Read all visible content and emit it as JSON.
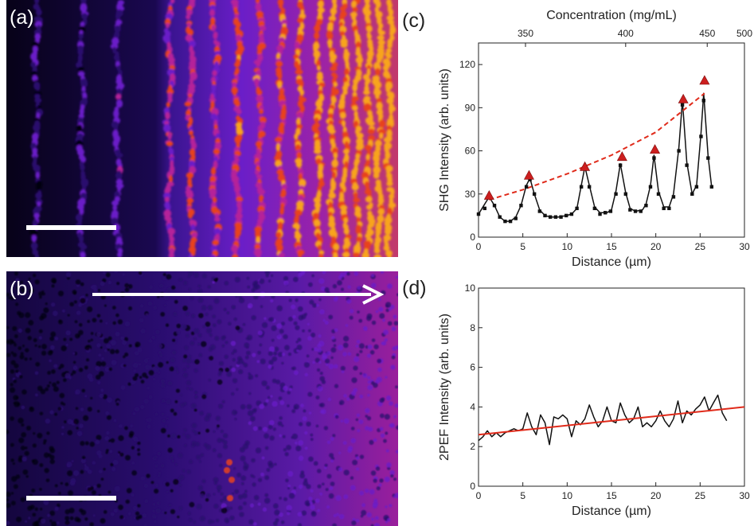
{
  "panels": {
    "a": {
      "letter": "(a)"
    },
    "b": {
      "letter": "(b)"
    },
    "c": {
      "letter": "(c)"
    },
    "d": {
      "letter": "(d)"
    }
  },
  "colors": {
    "shg_line": "#111111",
    "shg_markers": "#111111",
    "shg_peaks": "#cc1f1f",
    "shg_fit": "#e02a1a",
    "pef_line": "#111111",
    "pef_fit": "#e02a1a",
    "colormap": [
      "#05010e",
      "#2a0a6e",
      "#6a1ec8",
      "#b5229a",
      "#e8421f",
      "#f8a41a",
      "#fff5a0"
    ]
  },
  "chart_data": [
    {
      "type": "line",
      "panel": "c",
      "xlabel": "Distance (µm)",
      "ylabel": "SHG Intensity (arb. units)",
      "xlim": [
        0,
        30
      ],
      "ylim": [
        0,
        135
      ],
      "xticks": [
        0,
        5,
        10,
        15,
        20,
        25,
        30
      ],
      "yticks": [
        0,
        30,
        60,
        90,
        120
      ],
      "top_axis": {
        "label": "Concentration (mg/mL)",
        "ticks": [
          {
            "label": "350",
            "x": 5.3
          },
          {
            "label": "400",
            "x": 16.6
          },
          {
            "label": "450",
            "x": 25.8
          },
          {
            "label": "500",
            "x": 30
          }
        ]
      },
      "series": [
        {
          "kind": "markers",
          "points": [
            [
              0,
              16
            ],
            [
              0.7,
              20
            ],
            [
              1.2,
              28
            ],
            [
              1.8,
              22
            ],
            [
              2.4,
              14
            ],
            [
              3,
              11
            ],
            [
              3.6,
              11
            ],
            [
              4.2,
              13
            ],
            [
              4.8,
              22
            ],
            [
              5.4,
              35
            ],
            [
              5.8,
              40
            ],
            [
              6.3,
              30
            ],
            [
              6.9,
              18
            ],
            [
              7.5,
              15
            ],
            [
              8.1,
              14
            ],
            [
              8.7,
              14
            ],
            [
              9.3,
              14
            ],
            [
              9.9,
              15
            ],
            [
              10.5,
              16
            ],
            [
              11.1,
              20
            ],
            [
              11.6,
              35
            ],
            [
              12,
              48
            ],
            [
              12.5,
              35
            ],
            [
              13.1,
              20
            ],
            [
              13.7,
              16
            ],
            [
              14.3,
              17
            ],
            [
              14.9,
              18
            ],
            [
              15.5,
              30
            ],
            [
              16,
              50
            ],
            [
              16.6,
              30
            ],
            [
              17.1,
              19
            ],
            [
              17.7,
              18
            ],
            [
              18.3,
              18
            ],
            [
              18.9,
              22
            ],
            [
              19.4,
              35
            ],
            [
              19.8,
              55
            ],
            [
              20.3,
              30
            ],
            [
              20.9,
              20
            ],
            [
              21.5,
              20
            ],
            [
              22,
              28
            ],
            [
              22.6,
              60
            ],
            [
              23,
              92
            ],
            [
              23.5,
              50
            ],
            [
              24.1,
              30
            ],
            [
              24.6,
              35
            ],
            [
              25.1,
              70
            ],
            [
              25.4,
              95
            ],
            [
              25.9,
              55
            ],
            [
              26.3,
              35
            ]
          ]
        },
        {
          "kind": "peaks",
          "points": [
            [
              1.2,
              29
            ],
            [
              5.7,
              43
            ],
            [
              12,
              49
            ],
            [
              16.2,
              56
            ],
            [
              19.9,
              61
            ],
            [
              23.1,
              96
            ],
            [
              25.5,
              109
            ]
          ]
        },
        {
          "kind": "fit",
          "points": [
            [
              1.2,
              26
            ],
            [
              5,
              33
            ],
            [
              10,
              44
            ],
            [
              15,
              57
            ],
            [
              20,
              73
            ],
            [
              25.5,
              100
            ]
          ]
        },
        {
          "kind": "line",
          "points": [
            [
              0,
              16
            ],
            [
              0.6,
              22
            ],
            [
              1.2,
              28
            ],
            [
              1.8,
              22
            ],
            [
              2.4,
              14
            ],
            [
              3,
              11
            ],
            [
              3.6,
              11
            ],
            [
              4.2,
              14
            ],
            [
              4.8,
              22
            ],
            [
              5.4,
              36
            ],
            [
              5.8,
              41
            ],
            [
              6.3,
              30
            ],
            [
              6.9,
              19
            ],
            [
              7.5,
              15
            ],
            [
              8.1,
              14
            ],
            [
              9,
              14
            ],
            [
              9.9,
              15
            ],
            [
              10.5,
              16
            ],
            [
              11.1,
              20
            ],
            [
              11.6,
              36
            ],
            [
              12,
              49
            ],
            [
              12.5,
              36
            ],
            [
              13.1,
              21
            ],
            [
              13.7,
              17
            ],
            [
              14.5,
              17
            ],
            [
              15,
              19
            ],
            [
              15.5,
              32
            ],
            [
              16,
              51
            ],
            [
              16.6,
              31
            ],
            [
              17.1,
              20
            ],
            [
              17.7,
              18
            ],
            [
              18.5,
              19
            ],
            [
              18.9,
              23
            ],
            [
              19.4,
              36
            ],
            [
              19.8,
              57
            ],
            [
              20.3,
              32
            ],
            [
              20.9,
              21
            ],
            [
              21.5,
              21
            ],
            [
              22,
              30
            ],
            [
              22.6,
              62
            ],
            [
              23,
              95
            ],
            [
              23.5,
              52
            ],
            [
              24.1,
              30
            ],
            [
              24.6,
              36
            ],
            [
              25.1,
              72
            ],
            [
              25.4,
              100
            ],
            [
              25.9,
              56
            ],
            [
              26.3,
              35
            ]
          ]
        }
      ]
    },
    {
      "type": "line",
      "panel": "d",
      "xlabel": "Distance (µm)",
      "ylabel": "2PEF Intensity (arb. units)",
      "xlim": [
        0,
        30
      ],
      "ylim": [
        0,
        10
      ],
      "xticks": [
        0,
        5,
        10,
        15,
        20,
        25,
        30
      ],
      "yticks": [
        0,
        2,
        4,
        6,
        8,
        10
      ],
      "series": [
        {
          "kind": "line",
          "points": [
            [
              0,
              2.3
            ],
            [
              0.5,
              2.5
            ],
            [
              1,
              2.8
            ],
            [
              1.5,
              2.5
            ],
            [
              2,
              2.7
            ],
            [
              2.5,
              2.5
            ],
            [
              3,
              2.7
            ],
            [
              3.5,
              2.8
            ],
            [
              4,
              2.9
            ],
            [
              4.5,
              2.8
            ],
            [
              5,
              2.9
            ],
            [
              5.5,
              3.7
            ],
            [
              6,
              3.0
            ],
            [
              6.5,
              2.6
            ],
            [
              7,
              3.6
            ],
            [
              7.5,
              3.2
            ],
            [
              8,
              2.1
            ],
            [
              8.5,
              3.5
            ],
            [
              9,
              3.4
            ],
            [
              9.5,
              3.6
            ],
            [
              10,
              3.4
            ],
            [
              10.5,
              2.5
            ],
            [
              11,
              3.3
            ],
            [
              11.5,
              3.1
            ],
            [
              12,
              3.4
            ],
            [
              12.5,
              4.1
            ],
            [
              13,
              3.5
            ],
            [
              13.5,
              3.0
            ],
            [
              14,
              3.3
            ],
            [
              14.5,
              4.0
            ],
            [
              15,
              3.3
            ],
            [
              15.5,
              3.2
            ],
            [
              16,
              4.2
            ],
            [
              16.5,
              3.6
            ],
            [
              17,
              3.2
            ],
            [
              17.5,
              3.4
            ],
            [
              18,
              4.0
            ],
            [
              18.5,
              3.0
            ],
            [
              19,
              3.2
            ],
            [
              19.5,
              3.0
            ],
            [
              20,
              3.3
            ],
            [
              20.5,
              3.8
            ],
            [
              21,
              3.3
            ],
            [
              21.5,
              3.0
            ],
            [
              22,
              3.4
            ],
            [
              22.5,
              4.3
            ],
            [
              23,
              3.2
            ],
            [
              23.5,
              3.8
            ],
            [
              24,
              3.6
            ],
            [
              24.5,
              3.9
            ],
            [
              25,
              4.1
            ],
            [
              25.5,
              4.5
            ],
            [
              26,
              3.8
            ],
            [
              26.5,
              4.2
            ],
            [
              27,
              4.6
            ],
            [
              27.5,
              3.7
            ],
            [
              28,
              3.3
            ]
          ]
        },
        {
          "kind": "fit",
          "points": [
            [
              0,
              2.6
            ],
            [
              30,
              4.0
            ]
          ]
        }
      ]
    }
  ]
}
